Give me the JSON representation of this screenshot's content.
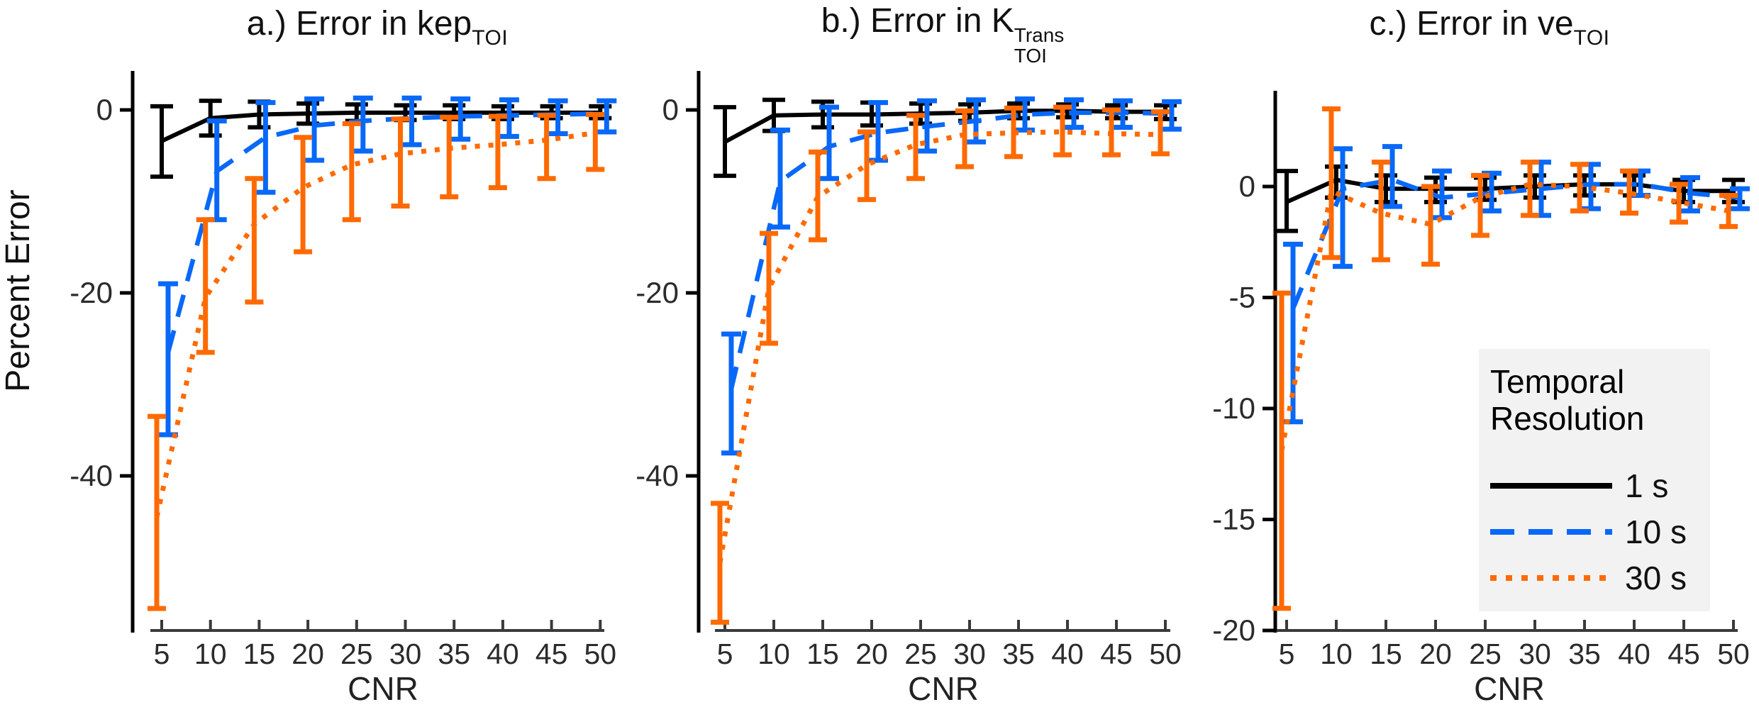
{
  "figure": {
    "y_axis_label": "Percent Error",
    "x_axis_label": "CNR",
    "background": "#ffffff",
    "axis_color": "#3a3a3a",
    "tick_text_color": "#2b2b2b",
    "legend": {
      "title_line1": "Temporal",
      "title_line2": "Resolution",
      "background": "#f2f2f2",
      "entries": [
        {
          "label": "1 s",
          "color": "#000000",
          "style": "solid",
          "series": "1 s"
        },
        {
          "label": "10 s",
          "color": "#0868f8",
          "style": "dashed",
          "series": "10 s"
        },
        {
          "label": "30 s",
          "color": "#ff6a00",
          "style": "dotted",
          "series": "30 s"
        }
      ]
    }
  },
  "chart_data": [
    {
      "id": "a",
      "type": "line",
      "title_prefix": "a.) Error in ",
      "title_base": "kep",
      "title_sub": "TOI",
      "title_sup": "",
      "xlabel": "CNR",
      "ylabel": "Percent Error",
      "x": [
        5,
        10,
        15,
        20,
        25,
        30,
        35,
        40,
        45,
        50
      ],
      "yticks": [
        0,
        -20,
        -40
      ],
      "ylim": [
        5,
        -57
      ],
      "grid": false,
      "series": [
        {
          "name": "1 s",
          "color": "#000000",
          "style": "solid",
          "values": [
            -3.4,
            -0.9,
            -0.5,
            -0.4,
            -0.3,
            -0.3,
            -0.3,
            -0.3,
            -0.3,
            -0.3
          ],
          "err_hi": [
            0.4,
            1.0,
            0.9,
            0.7,
            0.6,
            0.5,
            0.5,
            0.4,
            0.4,
            0.4
          ],
          "err_lo": [
            -7.3,
            -2.8,
            -1.9,
            -1.5,
            -1.2,
            -1.1,
            -1.0,
            -1.0,
            -0.9,
            -0.9
          ]
        },
        {
          "name": "10 s",
          "color": "#0868f8",
          "style": "dashed",
          "values": [
            -26.5,
            -6.7,
            -3.0,
            -1.7,
            -1.2,
            -0.9,
            -0.7,
            -0.6,
            -0.5,
            -0.4
          ],
          "err_hi": [
            -19.0,
            -1.2,
            0.8,
            1.2,
            1.3,
            1.3,
            1.2,
            1.1,
            1.0,
            1.0
          ],
          "err_lo": [
            -35.5,
            -12.0,
            -9.0,
            -5.5,
            -4.5,
            -3.8,
            -3.2,
            -2.9,
            -2.6,
            -2.4
          ]
        },
        {
          "name": "30 s",
          "color": "#ff6a00",
          "style": "dotted",
          "values": [
            -44.5,
            -20.5,
            -12.5,
            -8.5,
            -6.0,
            -4.8,
            -4.2,
            -3.8,
            -3.3,
            -2.5
          ],
          "err_hi": [
            -33.5,
            -12.0,
            -7.5,
            -3.0,
            -1.5,
            -1.0,
            -0.8,
            -0.7,
            -0.6,
            -0.5
          ],
          "err_lo": [
            -54.5,
            -26.5,
            -21.0,
            -15.5,
            -12.0,
            -10.5,
            -9.5,
            -8.5,
            -7.5,
            -6.5
          ]
        }
      ]
    },
    {
      "id": "b",
      "type": "line",
      "title_prefix": "b.) Error in ",
      "title_base": "K",
      "title_sub": "TOI",
      "title_sup": "Trans",
      "xlabel": "CNR",
      "ylabel": "Percent Error",
      "x": [
        5,
        10,
        15,
        20,
        25,
        30,
        35,
        40,
        45,
        50
      ],
      "yticks": [
        0,
        -20,
        -40
      ],
      "ylim": [
        5,
        -57
      ],
      "grid": false,
      "series": [
        {
          "name": "1 s",
          "color": "#000000",
          "style": "solid",
          "values": [
            -3.5,
            -0.6,
            -0.5,
            -0.5,
            -0.4,
            -0.3,
            -0.1,
            -0.1,
            -0.2,
            -0.2
          ],
          "err_hi": [
            0.3,
            1.1,
            0.9,
            0.8,
            0.7,
            0.6,
            0.7,
            0.6,
            0.5,
            0.5
          ],
          "err_lo": [
            -7.2,
            -2.3,
            -1.9,
            -1.7,
            -1.5,
            -1.2,
            -0.9,
            -0.8,
            -0.9,
            -1.0
          ]
        },
        {
          "name": "10 s",
          "color": "#0868f8",
          "style": "dashed",
          "values": [
            -30.5,
            -7.8,
            -4.0,
            -2.5,
            -1.8,
            -1.2,
            -0.5,
            -0.3,
            -0.3,
            -0.4
          ],
          "err_hi": [
            -24.5,
            -2.2,
            0.3,
            0.8,
            1.0,
            1.1,
            1.2,
            1.1,
            1.0,
            0.9
          ],
          "err_lo": [
            -37.5,
            -12.8,
            -7.5,
            -5.5,
            -4.5,
            -3.5,
            -2.2,
            -1.9,
            -1.9,
            -2.1
          ]
        },
        {
          "name": "30 s",
          "color": "#ff6a00",
          "style": "dotted",
          "values": [
            -49.5,
            -19.5,
            -9.5,
            -6.0,
            -3.8,
            -2.7,
            -2.5,
            -2.4,
            -2.6,
            -2.7
          ],
          "err_hi": [
            -43.0,
            -13.5,
            -4.6,
            -2.4,
            -0.6,
            -0.1,
            0.2,
            0.3,
            0.0,
            -0.2
          ],
          "err_lo": [
            -56.0,
            -25.5,
            -14.2,
            -9.8,
            -7.5,
            -6.2,
            -5.1,
            -4.9,
            -4.9,
            -4.8
          ]
        }
      ]
    },
    {
      "id": "c",
      "type": "line",
      "title_prefix": "c.) Error in ",
      "title_base": "ve",
      "title_sub": "TOI",
      "title_sup": "",
      "xlabel": "CNR",
      "ylabel": "Percent Error",
      "x": [
        5,
        10,
        15,
        20,
        25,
        30,
        35,
        40,
        45,
        50
      ],
      "yticks": [
        0,
        -5,
        -10,
        -15,
        -20
      ],
      "ylim": [
        4.2,
        -20
      ],
      "grid": false,
      "series": [
        {
          "name": "1 s",
          "color": "#000000",
          "style": "solid",
          "values": [
            -0.7,
            0.3,
            -0.1,
            -0.1,
            -0.1,
            0.0,
            0.1,
            0.1,
            -0.2,
            -0.2
          ],
          "err_hi": [
            0.7,
            0.9,
            0.5,
            0.4,
            0.4,
            0.5,
            0.5,
            0.5,
            0.3,
            0.3
          ],
          "err_lo": [
            -2.0,
            -0.5,
            -0.7,
            -0.7,
            -0.6,
            -0.5,
            -0.4,
            -0.4,
            -0.7,
            -0.7
          ]
        },
        {
          "name": "10 s",
          "color": "#0868f8",
          "style": "dashed",
          "values": [
            -5.5,
            -0.1,
            0.3,
            -0.5,
            -0.3,
            -0.1,
            0.1,
            0.1,
            -0.3,
            -0.5
          ],
          "err_hi": [
            -2.6,
            1.7,
            1.8,
            0.7,
            0.6,
            1.1,
            1.0,
            0.7,
            0.4,
            -0.1
          ],
          "err_lo": [
            -10.6,
            -3.6,
            -0.9,
            -1.4,
            -1.1,
            -1.3,
            -1.0,
            -0.4,
            -1.1,
            -1.0
          ]
        },
        {
          "name": "30 s",
          "color": "#ff6a00",
          "style": "dotted",
          "values": [
            -11.9,
            -0.2,
            -1.2,
            -1.7,
            -0.5,
            0.1,
            0.0,
            -0.3,
            -0.7,
            -1.1
          ],
          "err_hi": [
            -4.8,
            3.5,
            1.1,
            0.0,
            0.5,
            1.1,
            1.0,
            0.7,
            0.1,
            -0.4
          ],
          "err_lo": [
            -19.0,
            -3.2,
            -3.3,
            -3.5,
            -2.2,
            -1.3,
            -1.1,
            -1.2,
            -1.6,
            -1.8
          ]
        }
      ]
    }
  ]
}
